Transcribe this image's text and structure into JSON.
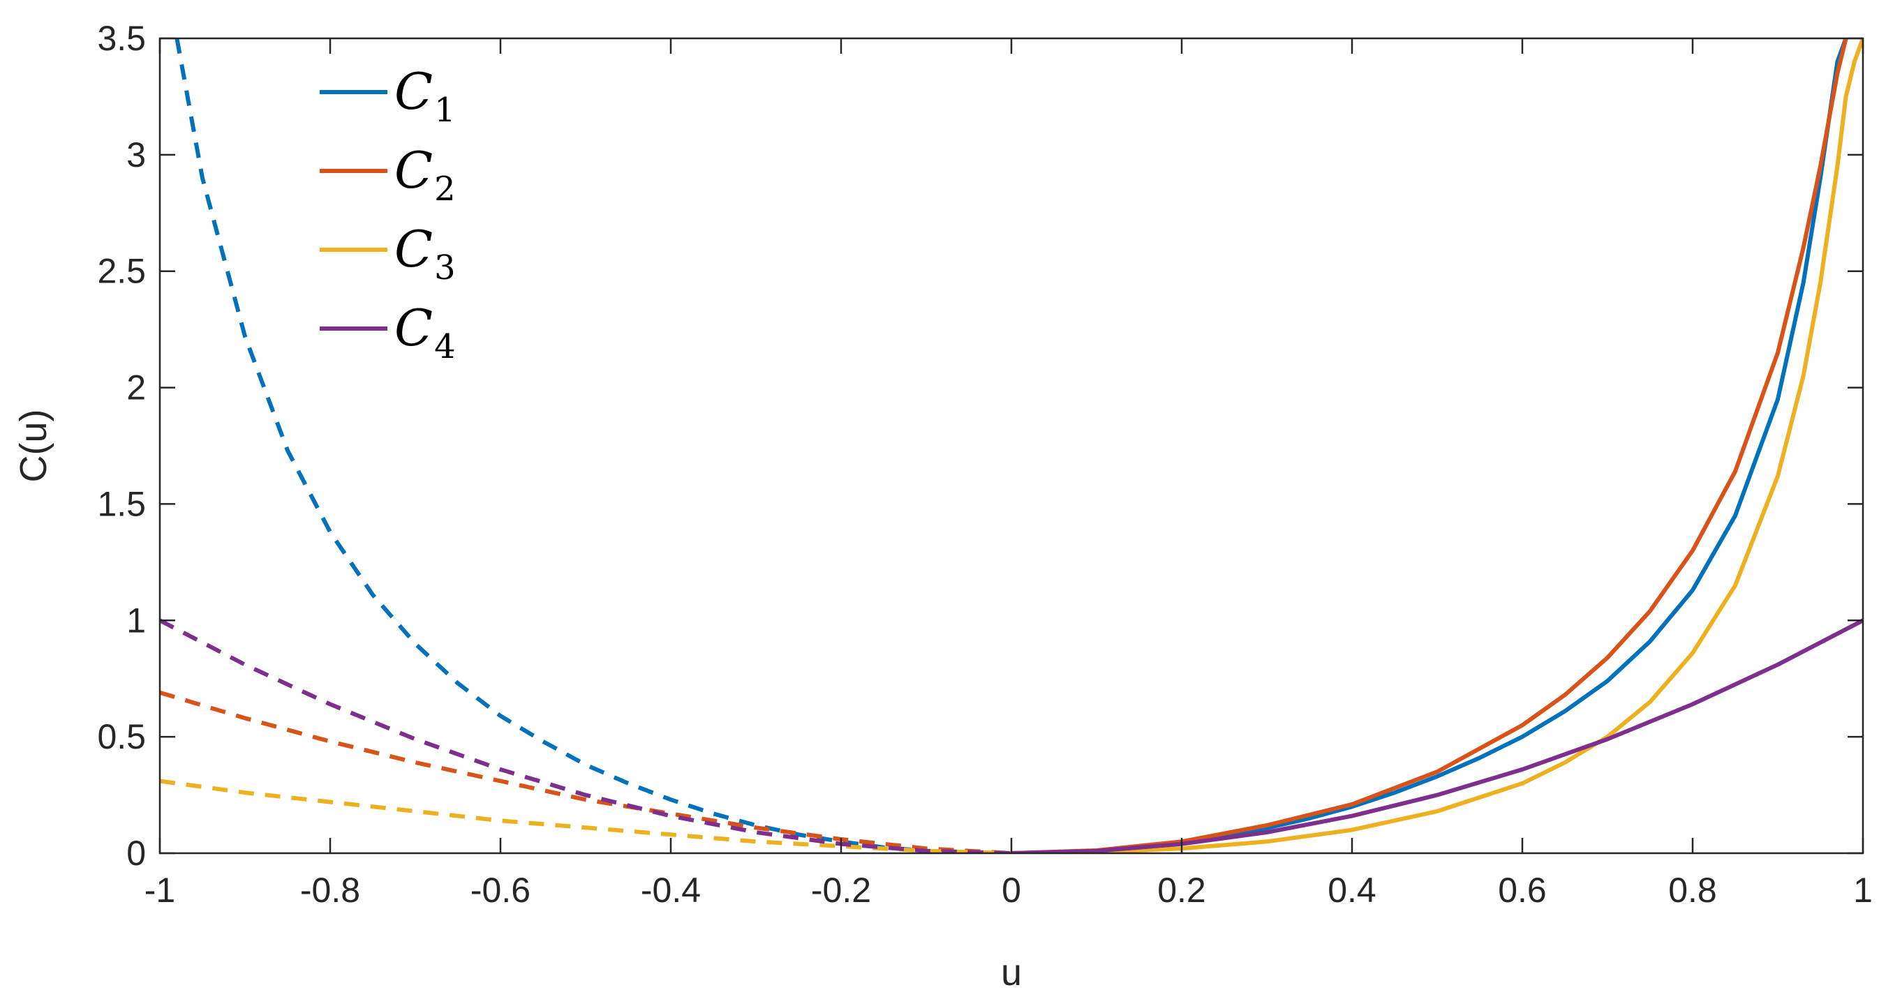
{
  "chart_data": {
    "type": "line",
    "title": "",
    "xlabel": "u",
    "ylabel": "C(u)",
    "xlim": [
      -1,
      1
    ],
    "ylim": [
      0,
      3.5
    ],
    "xticks": [
      -1,
      -0.8,
      -0.6,
      -0.4,
      -0.2,
      0,
      0.2,
      0.4,
      0.6,
      0.8,
      1
    ],
    "xtick_labels": [
      "-1",
      "-0.8",
      "-0.6",
      "-0.4",
      "-0.2",
      "0",
      "0.2",
      "0.4",
      "0.6",
      "0.8",
      "1"
    ],
    "yticks": [
      0,
      0.5,
      1,
      1.5,
      2,
      2.5,
      3,
      3.5
    ],
    "ytick_labels": [
      "0",
      "0.5",
      "1",
      "1.5",
      "2",
      "2.5",
      "3",
      "3.5"
    ],
    "grid": false,
    "legend_position": "top-left",
    "line_style_note_negative_u": "dashed",
    "line_style_note_positive_u": "solid",
    "series": [
      {
        "name": "C",
        "subscript": "1",
        "color": "#0072BD",
        "x": [
          -0.98,
          -0.95,
          -0.9,
          -0.85,
          -0.8,
          -0.75,
          -0.7,
          -0.65,
          -0.6,
          -0.55,
          -0.5,
          -0.45,
          -0.4,
          -0.35,
          -0.3,
          -0.25,
          -0.2,
          -0.15,
          -0.1,
          -0.05,
          0,
          0.05,
          0.1,
          0.15,
          0.2,
          0.25,
          0.3,
          0.35,
          0.4,
          0.45,
          0.5,
          0.55,
          0.6,
          0.65,
          0.7,
          0.75,
          0.8,
          0.85,
          0.9,
          0.93,
          0.95,
          0.97,
          0.98
        ],
        "y": [
          3.5,
          2.9,
          2.22,
          1.73,
          1.38,
          1.11,
          0.9,
          0.73,
          0.59,
          0.48,
          0.38,
          0.3,
          0.23,
          0.17,
          0.12,
          0.08,
          0.05,
          0.025,
          0.01,
          0.002,
          0,
          0.003,
          0.011,
          0.025,
          0.046,
          0.073,
          0.108,
          0.15,
          0.2,
          0.26,
          0.33,
          0.41,
          0.5,
          0.61,
          0.74,
          0.91,
          1.13,
          1.45,
          1.95,
          2.45,
          2.9,
          3.4,
          3.5
        ]
      },
      {
        "name": "C",
        "subscript": "2",
        "color": "#D95319",
        "x": [
          -1,
          -0.9,
          -0.8,
          -0.7,
          -0.6,
          -0.5,
          -0.4,
          -0.3,
          -0.2,
          -0.1,
          0,
          0.1,
          0.2,
          0.3,
          0.4,
          0.5,
          0.6,
          0.65,
          0.7,
          0.75,
          0.8,
          0.85,
          0.9,
          0.93,
          0.95,
          0.97,
          0.98
        ],
        "y": [
          0.69,
          0.58,
          0.48,
          0.39,
          0.31,
          0.23,
          0.17,
          0.11,
          0.06,
          0.02,
          0,
          0.012,
          0.05,
          0.12,
          0.21,
          0.35,
          0.55,
          0.68,
          0.84,
          1.04,
          1.3,
          1.64,
          2.15,
          2.6,
          2.95,
          3.35,
          3.5
        ]
      },
      {
        "name": "C",
        "subscript": "3",
        "color": "#EDB120",
        "x": [
          -1,
          -0.9,
          -0.8,
          -0.7,
          -0.6,
          -0.5,
          -0.4,
          -0.3,
          -0.2,
          -0.1,
          0,
          0.1,
          0.2,
          0.3,
          0.4,
          0.5,
          0.6,
          0.65,
          0.7,
          0.75,
          0.8,
          0.85,
          0.9,
          0.93,
          0.95,
          0.97,
          0.98,
          0.99,
          1.0
        ],
        "y": [
          0.31,
          0.26,
          0.22,
          0.18,
          0.14,
          0.11,
          0.08,
          0.05,
          0.03,
          0.01,
          0,
          0.005,
          0.02,
          0.05,
          0.1,
          0.18,
          0.3,
          0.39,
          0.5,
          0.65,
          0.86,
          1.15,
          1.62,
          2.05,
          2.45,
          2.95,
          3.25,
          3.4,
          3.5
        ]
      },
      {
        "name": "C",
        "subscript": "4",
        "color": "#7E2F8E",
        "x": [
          -1,
          -0.9,
          -0.8,
          -0.7,
          -0.6,
          -0.5,
          -0.4,
          -0.3,
          -0.2,
          -0.1,
          0,
          0.1,
          0.2,
          0.3,
          0.4,
          0.5,
          0.6,
          0.7,
          0.8,
          0.9,
          1.0
        ],
        "y": [
          1.0,
          0.81,
          0.64,
          0.49,
          0.36,
          0.25,
          0.16,
          0.09,
          0.04,
          0.01,
          0,
          0.01,
          0.04,
          0.09,
          0.16,
          0.25,
          0.36,
          0.49,
          0.64,
          0.81,
          1.0
        ]
      }
    ]
  }
}
